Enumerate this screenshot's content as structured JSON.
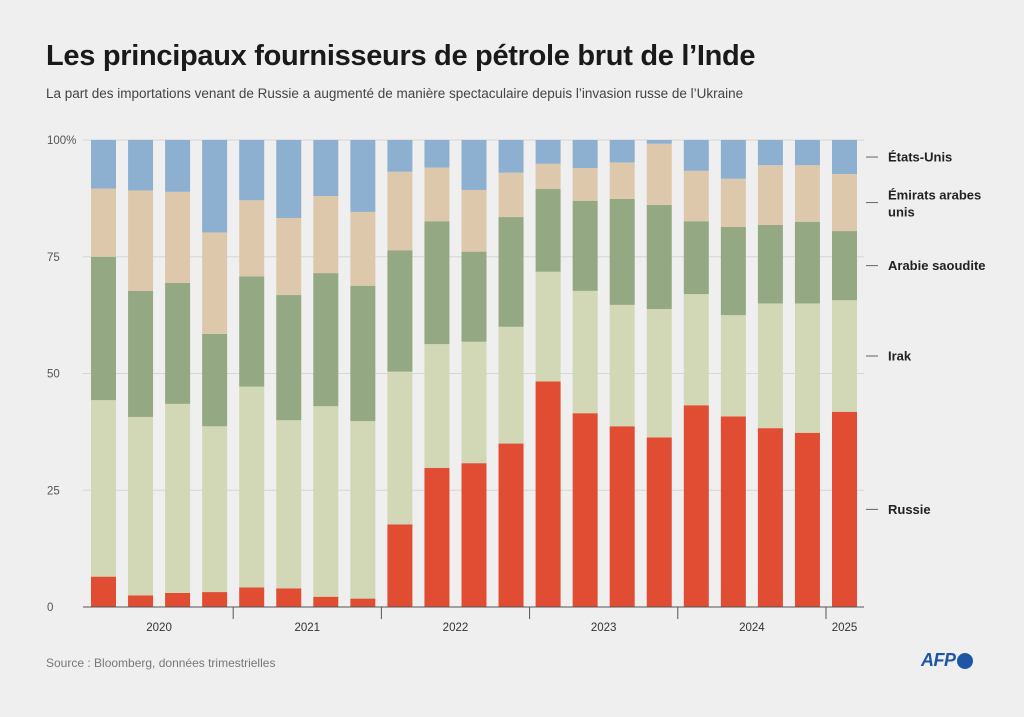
{
  "header": {
    "title": "Les principaux fournisseurs de pétrole brut de l’Inde",
    "subtitle": "La part des importations venant de Russie a augmenté de manière spectaculaire depuis l’invasion russe de l’Ukraine"
  },
  "footer": {
    "source": "Source : Bloomberg, données trimestrielles",
    "logo": "AFP"
  },
  "chart_data": {
    "type": "bar",
    "stacked": true,
    "unit": "%",
    "ylim": [
      0,
      100
    ],
    "yticks": [
      0,
      25,
      50,
      75,
      100
    ],
    "ytick_labels": [
      "0",
      "25",
      "50",
      "75",
      "100%"
    ],
    "grid": true,
    "legend_placement": "right",
    "year_groups": [
      {
        "label": "2020",
        "count": 4
      },
      {
        "label": "2021",
        "count": 4
      },
      {
        "label": "2022",
        "count": 4
      },
      {
        "label": "2023",
        "count": 4
      },
      {
        "label": "2024",
        "count": 4
      },
      {
        "label": "2025",
        "count": 1
      }
    ],
    "series": [
      {
        "name": "Russie",
        "color": "#e04d32",
        "values": [
          6.5,
          2.5,
          3,
          3.2,
          4.2,
          4,
          2.2,
          1.8,
          17.7,
          29.8,
          30.8,
          35,
          48.3,
          41.5,
          38.7,
          36.3,
          43.2,
          40.8,
          38.3,
          37.3,
          41.8
        ]
      },
      {
        "name": "Irak",
        "color": "#d2d7b6",
        "values": [
          37.8,
          38.2,
          40.5,
          35.5,
          43,
          36,
          40.8,
          38,
          32.7,
          26.5,
          26,
          25,
          23.5,
          26.2,
          26,
          27.5,
          23.8,
          21.7,
          26.7,
          27.7,
          23.9
        ]
      },
      {
        "name": "Arabie saoudite",
        "color": "#94a883",
        "values": [
          30.7,
          27,
          25.9,
          19.8,
          23.6,
          26.8,
          28.5,
          29,
          26,
          26.3,
          19.3,
          23.5,
          17.7,
          19.3,
          22.7,
          22.3,
          15.6,
          18.9,
          16.8,
          17.5,
          14.8
        ]
      },
      {
        "name": "Émirats arabes unis",
        "color": "#dec8ac",
        "values": [
          14.6,
          21.5,
          19.5,
          21.7,
          16.3,
          16.5,
          16.5,
          15.8,
          16.8,
          11.5,
          13.2,
          9.5,
          5.4,
          7,
          7.8,
          13.1,
          10.8,
          10.3,
          12.8,
          12.1,
          12.2
        ]
      },
      {
        "name": "États-Unis",
        "color": "#8eb0d0",
        "values": [
          10.4,
          10.8,
          11.1,
          19.8,
          12.9,
          16.7,
          12,
          15.4,
          6.8,
          5.9,
          10.7,
          7,
          5.1,
          6,
          4.8,
          0.8,
          6.6,
          8.3,
          5.4,
          5.4,
          7.3
        ]
      }
    ]
  }
}
